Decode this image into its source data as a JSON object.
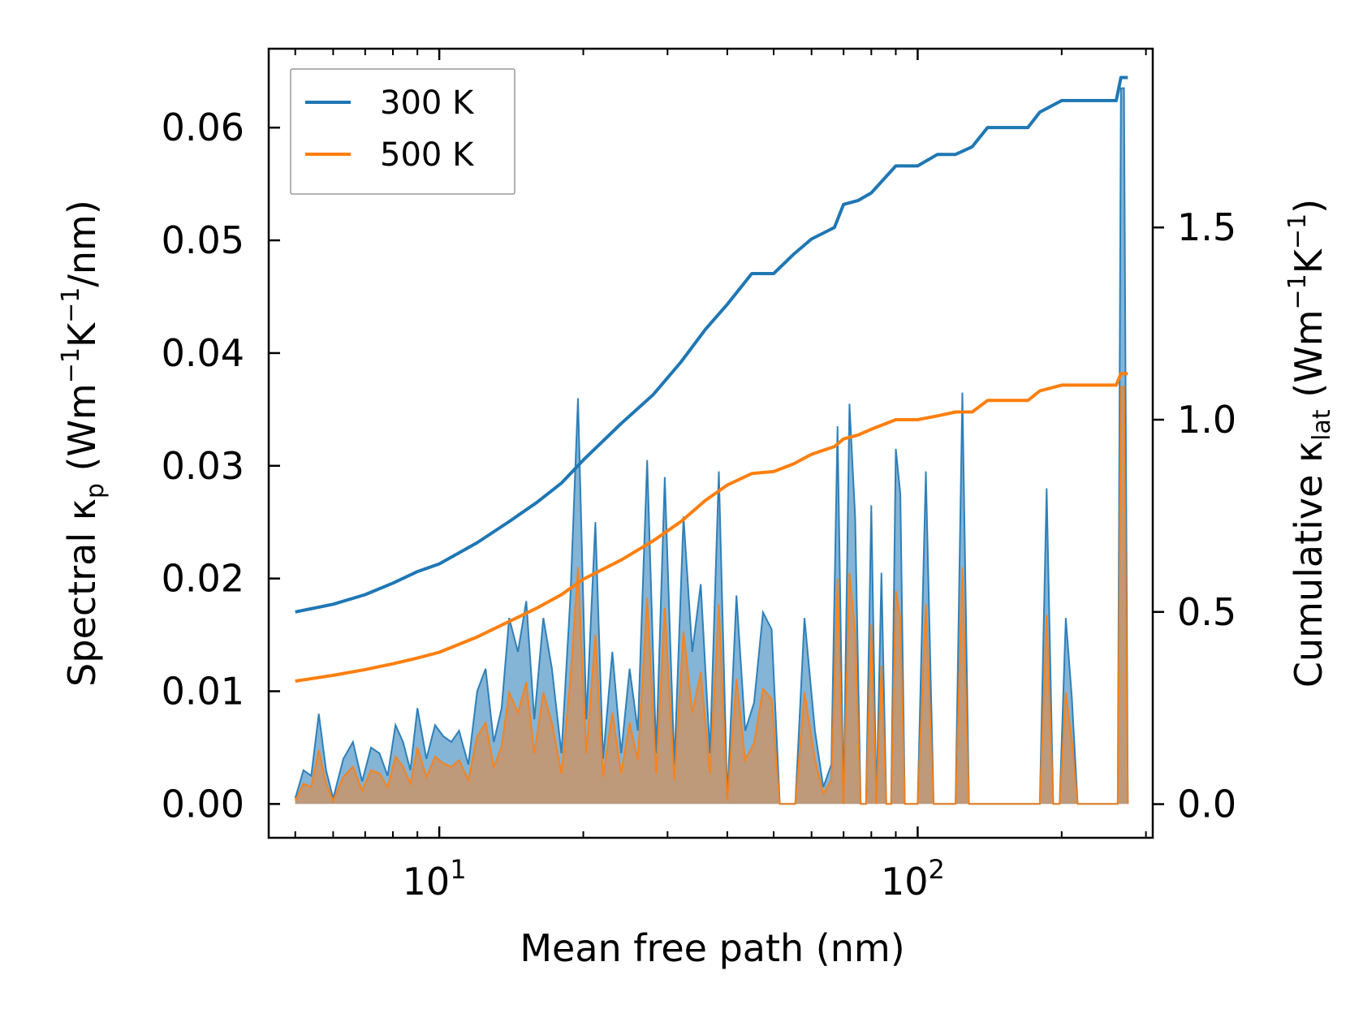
{
  "chart_data": {
    "type": "line",
    "title": "",
    "xlabel": "Mean free path (nm)",
    "ylabel_left": {
      "main": "Spectral κ",
      "sub": "p",
      "unit_open": " (Wm",
      "sup1": "−1",
      "unit_mid": "K",
      "sup2": "−1",
      "unit_close": "/nm)"
    },
    "ylabel_right": {
      "main": "Cumulative κ",
      "sub": "lat",
      "unit_open": " (Wm",
      "sup1": "−1",
      "unit_mid": "K",
      "sup2": "−1",
      "unit_close": ")"
    },
    "xscale": "log",
    "xlim": [
      4.4,
      310
    ],
    "ylim_left": [
      -0.003,
      0.067
    ],
    "ylim_right": [
      -0.0875,
      1.965
    ],
    "x_major_ticks": [
      {
        "value": 10,
        "base": "10",
        "exp": "1"
      },
      {
        "value": 100,
        "base": "10",
        "exp": "2"
      }
    ],
    "yticks_left": [
      "0.00",
      "0.01",
      "0.02",
      "0.03",
      "0.04",
      "0.05",
      "0.06"
    ],
    "yticks_right": [
      "0.0",
      "0.5",
      "1.0",
      "1.5"
    ],
    "legend": {
      "position": "top-left",
      "entries": [
        "300 K",
        "500 K"
      ]
    },
    "colors": {
      "300K": "#1f77b4",
      "500K": "#ff7f0e",
      "fill300": "#1f77b4",
      "fill500": "#c8946a"
    },
    "cumulative_series": [
      {
        "name": "300 K",
        "axis": "right",
        "x": [
          5.0,
          6.0,
          7.0,
          8.0,
          9.0,
          10.0,
          12.0,
          14.0,
          16.0,
          18.0,
          20.0,
          24.0,
          28.0,
          32.0,
          36.0,
          40.0,
          45.0,
          50.0,
          55.0,
          60.0,
          67.0,
          70.0,
          75.0,
          80.0,
          90.0,
          100.0,
          110.0,
          120.0,
          130.0,
          140.0,
          150.0,
          170.0,
          180.0,
          200.0,
          220.0,
          260.0,
          266.0,
          275.0
        ],
        "values": [
          0.5,
          0.52,
          0.545,
          0.575,
          0.605,
          0.625,
          0.68,
          0.735,
          0.785,
          0.835,
          0.895,
          0.99,
          1.065,
          1.15,
          1.235,
          1.3,
          1.38,
          1.38,
          1.43,
          1.47,
          1.5,
          1.56,
          1.57,
          1.59,
          1.66,
          1.66,
          1.69,
          1.69,
          1.71,
          1.76,
          1.76,
          1.76,
          1.8,
          1.83,
          1.83,
          1.83,
          1.89,
          1.89
        ]
      },
      {
        "name": "500 K",
        "axis": "right",
        "x": [
          5.0,
          6.0,
          7.0,
          8.0,
          9.0,
          10.0,
          12.0,
          14.0,
          16.0,
          18.0,
          20.0,
          24.0,
          28.0,
          32.0,
          36.0,
          40.0,
          45.0,
          50.0,
          55.0,
          60.0,
          67.0,
          70.0,
          75.0,
          80.0,
          90.0,
          100.0,
          110.0,
          120.0,
          130.0,
          140.0,
          150.0,
          170.0,
          180.0,
          200.0,
          220.0,
          260.0,
          266.0,
          275.0
        ],
        "values": [
          0.32,
          0.335,
          0.35,
          0.365,
          0.38,
          0.395,
          0.435,
          0.475,
          0.51,
          0.545,
          0.585,
          0.635,
          0.685,
          0.735,
          0.79,
          0.83,
          0.86,
          0.865,
          0.885,
          0.91,
          0.93,
          0.95,
          0.96,
          0.975,
          1.0,
          1.0,
          1.01,
          1.02,
          1.02,
          1.05,
          1.05,
          1.05,
          1.075,
          1.09,
          1.09,
          1.09,
          1.12,
          1.12
        ]
      }
    ],
    "spectral_series": [
      {
        "name": "300 K spectral",
        "axis": "left",
        "x": [
          5.0,
          5.2,
          5.4,
          5.6,
          5.8,
          6.0,
          6.3,
          6.6,
          6.9,
          7.2,
          7.5,
          7.8,
          8.1,
          8.4,
          8.7,
          9.0,
          9.4,
          9.8,
          10.2,
          10.6,
          11.0,
          11.5,
          12.0,
          12.5,
          13.0,
          13.5,
          14.0,
          14.6,
          15.2,
          15.8,
          16.5,
          17.2,
          18.0,
          18.8,
          19.5,
          20.3,
          21.2,
          22.0,
          23.0,
          24.0,
          25.0,
          26.0,
          27.2,
          28.4,
          29.6,
          31.0,
          32.4,
          33.8,
          35.2,
          36.8,
          38.4,
          40.0,
          41.8,
          43.6,
          45.5,
          47.5,
          49.5,
          51.5,
          53.5,
          55.5,
          58.0,
          61.0,
          63.5,
          66.0,
          68.0,
          70.0,
          72.0,
          74.0,
          76.0,
          78.0,
          80.0,
          82.0,
          84.0,
          86.0,
          88.0,
          90.0,
          92.0,
          94.0,
          97.0,
          100.0,
          104.0,
          108.0,
          112.0,
          116.0,
          120.0,
          124.0,
          128.0,
          132.0,
          136.0,
          140.0,
          145.0,
          150.0,
          160.0,
          170.0,
          180.0,
          186.0,
          192.0,
          198.0,
          204.0,
          210.0,
          216.0,
          230.0,
          250.0,
          262.0,
          266.0,
          270.0,
          275.0
        ],
        "values": [
          0.0005,
          0.003,
          0.0025,
          0.008,
          0.003,
          0.0005,
          0.004,
          0.0055,
          0.002,
          0.005,
          0.0045,
          0.0025,
          0.007,
          0.0055,
          0.003,
          0.0085,
          0.004,
          0.007,
          0.006,
          0.0055,
          0.0065,
          0.0035,
          0.01,
          0.012,
          0.0055,
          0.0085,
          0.0165,
          0.0135,
          0.018,
          0.0075,
          0.0165,
          0.012,
          0.0045,
          0.0185,
          0.036,
          0.0075,
          0.025,
          0.004,
          0.0135,
          0.0045,
          0.012,
          0.0065,
          0.0305,
          0.0045,
          0.029,
          0.0035,
          0.0255,
          0.0135,
          0.0195,
          0.0045,
          0.0295,
          0.0005,
          0.0185,
          0.0065,
          0.009,
          0.017,
          0.0155,
          0.0,
          0.0,
          0.0,
          0.0165,
          0.0065,
          0.0015,
          0.0035,
          0.0335,
          0.0,
          0.0355,
          0.0255,
          0.0,
          0.0,
          0.0265,
          0.0,
          0.0205,
          0.0,
          0.0,
          0.0315,
          0.0275,
          0.0,
          0.0,
          0.0,
          0.0295,
          0.0,
          0.0,
          0.0,
          0.0,
          0.0365,
          0.0,
          0.0,
          0.0,
          0.0,
          0.0,
          0.0,
          0.0,
          0.0,
          0.0,
          0.028,
          0.0,
          0.0,
          0.0165,
          0.0095,
          0.0,
          0.0,
          0.0,
          0.0,
          0.0635,
          0.0635,
          0.0
        ]
      },
      {
        "name": "500 K spectral",
        "axis": "left",
        "x": [
          5.0,
          5.2,
          5.4,
          5.6,
          5.8,
          6.0,
          6.3,
          6.6,
          6.9,
          7.2,
          7.5,
          7.8,
          8.1,
          8.4,
          8.7,
          9.0,
          9.4,
          9.8,
          10.2,
          10.6,
          11.0,
          11.5,
          12.0,
          12.5,
          13.0,
          13.5,
          14.0,
          14.6,
          15.2,
          15.8,
          16.5,
          17.2,
          18.0,
          18.8,
          19.5,
          20.3,
          21.2,
          22.0,
          23.0,
          24.0,
          25.0,
          26.0,
          27.2,
          28.4,
          29.6,
          31.0,
          32.4,
          33.8,
          35.2,
          36.8,
          38.4,
          40.0,
          41.8,
          43.6,
          45.5,
          47.5,
          49.5,
          51.5,
          53.5,
          55.5,
          58.0,
          61.0,
          63.5,
          66.0,
          68.0,
          70.0,
          72.0,
          74.0,
          76.0,
          78.0,
          80.0,
          82.0,
          84.0,
          86.0,
          88.0,
          90.0,
          92.0,
          94.0,
          97.0,
          100.0,
          104.0,
          108.0,
          112.0,
          116.0,
          120.0,
          124.0,
          128.0,
          132.0,
          136.0,
          140.0,
          145.0,
          150.0,
          160.0,
          170.0,
          180.0,
          186.0,
          192.0,
          198.0,
          204.0,
          210.0,
          216.0,
          230.0,
          250.0,
          262.0,
          266.0,
          270.0,
          275.0
        ],
        "values": [
          0.0003,
          0.0018,
          0.0015,
          0.0048,
          0.0018,
          0.0003,
          0.0024,
          0.0033,
          0.0012,
          0.003,
          0.0027,
          0.0015,
          0.0042,
          0.0033,
          0.0018,
          0.005,
          0.0024,
          0.0042,
          0.0036,
          0.0033,
          0.0039,
          0.0021,
          0.006,
          0.0072,
          0.0033,
          0.0051,
          0.0099,
          0.0081,
          0.0108,
          0.0045,
          0.0099,
          0.0072,
          0.0027,
          0.0111,
          0.021,
          0.0045,
          0.015,
          0.0024,
          0.0081,
          0.0027,
          0.0072,
          0.0039,
          0.0183,
          0.0027,
          0.0174,
          0.0021,
          0.0153,
          0.0081,
          0.0117,
          0.0027,
          0.0177,
          0.0003,
          0.0111,
          0.0039,
          0.0054,
          0.0102,
          0.0093,
          0.0,
          0.0,
          0.0,
          0.0099,
          0.0039,
          0.0009,
          0.0021,
          0.02,
          0.0,
          0.0205,
          0.0153,
          0.0,
          0.0,
          0.0159,
          0.0,
          0.0123,
          0.0,
          0.0,
          0.0189,
          0.0165,
          0.0,
          0.0,
          0.0,
          0.0177,
          0.0,
          0.0,
          0.0,
          0.0,
          0.021,
          0.0,
          0.0,
          0.0,
          0.0,
          0.0,
          0.0,
          0.0,
          0.0,
          0.0,
          0.0168,
          0.0,
          0.0,
          0.0099,
          0.0057,
          0.0,
          0.0,
          0.0,
          0.0,
          0.037,
          0.037,
          0.0
        ]
      }
    ]
  }
}
